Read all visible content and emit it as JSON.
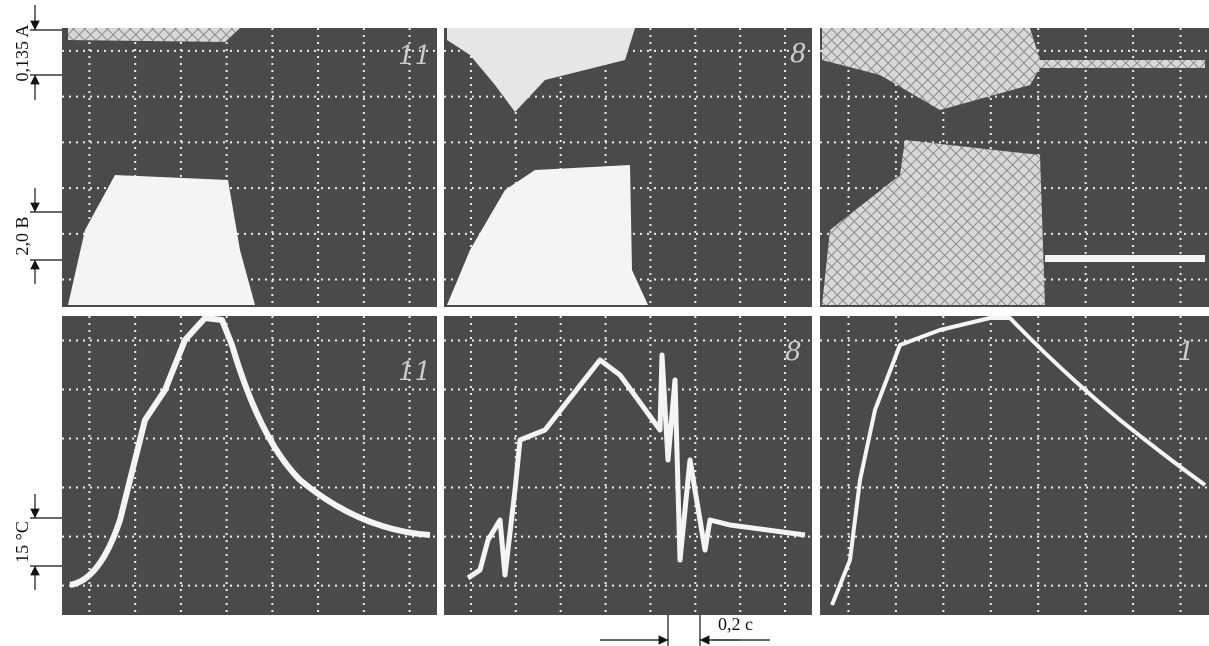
{
  "scale_bars": {
    "current": "0,135 A",
    "voltage": "2,0 B",
    "temperature": "15 °C",
    "time": "0,2 c"
  },
  "panels": {
    "top_left": "11",
    "top_middle": "8",
    "bottom_left": "11",
    "bottom_middle": "8",
    "bottom_right": "1"
  }
}
